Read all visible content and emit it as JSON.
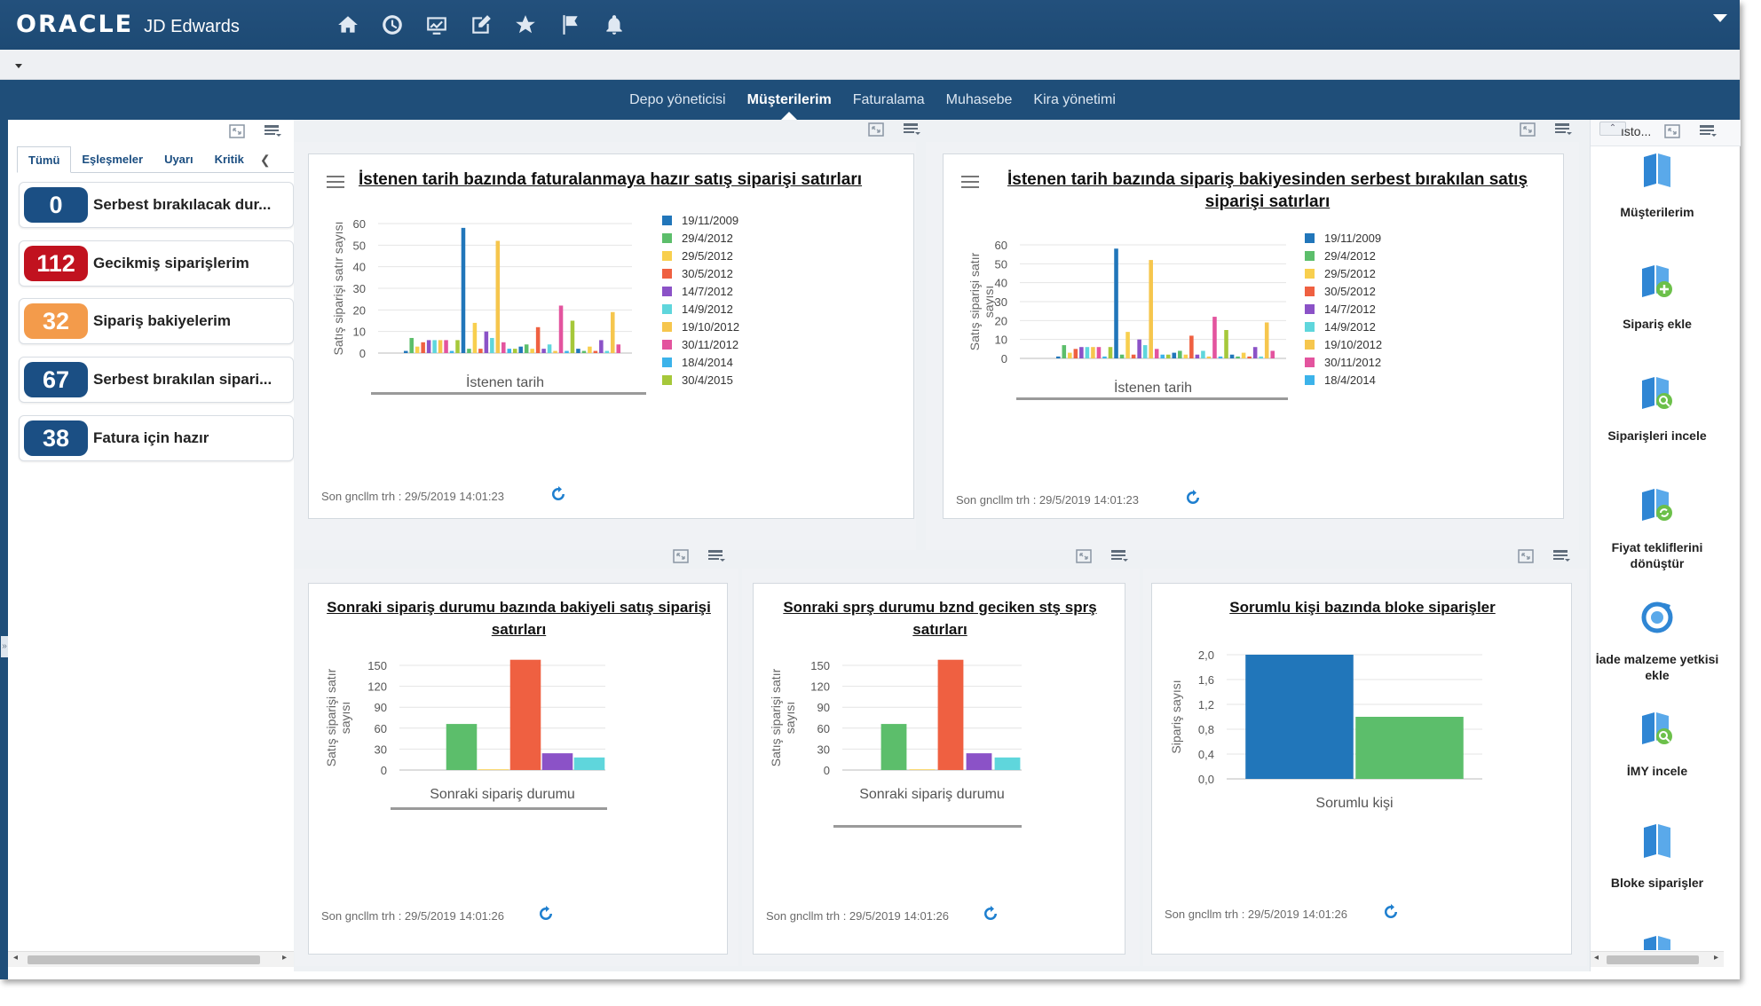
{
  "header": {
    "brand": "ORACLE",
    "product": "JD Edwards",
    "icons": [
      "home-icon",
      "recent-icon",
      "watchlist-chart-icon",
      "edit-form-icon",
      "favorites-star-icon",
      "flag-icon",
      "notification-bell-icon"
    ]
  },
  "nav": {
    "tabs": [
      {
        "label": "Depo yöneticisi",
        "active": false
      },
      {
        "label": "Müşterilerim",
        "active": true
      },
      {
        "label": "Faturalama",
        "active": false
      },
      {
        "label": "Muhasebe",
        "active": false
      },
      {
        "label": "Kira yönetimi",
        "active": false
      }
    ]
  },
  "left_panel": {
    "filters": [
      "Tümü",
      "Eşleşmeler",
      "Uyarı",
      "Kritik"
    ],
    "active_filter": "Tümü",
    "kpis": [
      {
        "value": "0",
        "label": "Serbest bırakılacak dur...",
        "color": "#1b4f84"
      },
      {
        "value": "112",
        "label": "Gecikmiş siparişlerim",
        "color": "#c1121f"
      },
      {
        "value": "32",
        "label": "Sipariş bakiyelerim",
        "color": "#f39b4b"
      },
      {
        "value": "67",
        "label": "Serbest bırakılan sipari...",
        "color": "#1b4f84"
      },
      {
        "value": "38",
        "label": "Fatura için hazır",
        "color": "#1b4f84"
      }
    ]
  },
  "right_panel": {
    "header_text": "ısto...",
    "actions": [
      {
        "label": "Müşterilerim",
        "icon": "book-icon"
      },
      {
        "label": "Sipariş ekle",
        "icon": "order-add-icon"
      },
      {
        "label": "Siparişleri incele",
        "icon": "order-review-icon"
      },
      {
        "label": "Fiyat tekliflerini dönüştür",
        "icon": "quote-convert-icon"
      },
      {
        "label": "İade malzeme yetkisi ekle",
        "icon": "return-authorization-icon"
      },
      {
        "label": "İMY incele",
        "icon": "rma-review-icon"
      },
      {
        "label": "Bloke siparişler",
        "icon": "book-icon"
      }
    ]
  },
  "chart_data": [
    {
      "type": "bar",
      "title": "İstenen tarih bazında faturalanmaya hazır satış siparişi satırları",
      "xlabel": "İstenen tarih",
      "ylabel": "Satış siparişi satır sayısı",
      "ylim": [
        0,
        60
      ],
      "yticks": [
        "0",
        "10",
        "20",
        "30",
        "40",
        "50",
        "60"
      ],
      "legend_position": "right",
      "legend": [
        {
          "name": "19/11/2009",
          "color": "#2176ba"
        },
        {
          "name": "29/4/2012",
          "color": "#5cbe6b"
        },
        {
          "name": "29/5/2012",
          "color": "#f8cf4e"
        },
        {
          "name": "30/5/2012",
          "color": "#ef6041"
        },
        {
          "name": "14/7/2012",
          "color": "#8b52c7"
        },
        {
          "name": "14/9/2012",
          "color": "#5fd6dc"
        },
        {
          "name": "19/10/2012",
          "color": "#f6c64d"
        },
        {
          "name": "30/11/2012",
          "color": "#e3549e"
        },
        {
          "name": "18/4/2014",
          "color": "#3cb3ea"
        },
        {
          "name": "30/4/2015",
          "color": "#a6c83a"
        }
      ],
      "bar_colors": [
        "#2176ba",
        "#5cbe6b",
        "#f8cf4e",
        "#ef6041",
        "#8b52c7",
        "#5fd6dc",
        "#f6c64d",
        "#e3549e",
        "#3cb3ea",
        "#a6c83a"
      ],
      "values": [
        1,
        7,
        3,
        5,
        6,
        6,
        6,
        6,
        1,
        6,
        58,
        2,
        14,
        2,
        10,
        7,
        52,
        5,
        2,
        2,
        3,
        4,
        2,
        12,
        2,
        4,
        1,
        22,
        1,
        15,
        2,
        1,
        3,
        1,
        6,
        1,
        19,
        4
      ],
      "footer": "Son gncllm trh : 29/5/2019 14:01:23"
    },
    {
      "type": "bar",
      "title": "İstenen tarih bazında sipariş bakiyesinden serbest bırakılan satış siparişi satırları",
      "xlabel": "İstenen tarih",
      "ylabel": "Satış siparişi satır sayısı",
      "ylim": [
        0,
        60
      ],
      "yticks": [
        "0",
        "10",
        "20",
        "30",
        "40",
        "50",
        "60"
      ],
      "legend_position": "right",
      "legend": [
        {
          "name": "19/11/2009",
          "color": "#2176ba"
        },
        {
          "name": "29/4/2012",
          "color": "#5cbe6b"
        },
        {
          "name": "29/5/2012",
          "color": "#f8cf4e"
        },
        {
          "name": "30/5/2012",
          "color": "#ef6041"
        },
        {
          "name": "14/7/2012",
          "color": "#8b52c7"
        },
        {
          "name": "14/9/2012",
          "color": "#5fd6dc"
        },
        {
          "name": "19/10/2012",
          "color": "#f6c64d"
        },
        {
          "name": "30/11/2012",
          "color": "#e3549e"
        },
        {
          "name": "18/4/2014",
          "color": "#3cb3ea"
        }
      ],
      "bar_colors": [
        "#2176ba",
        "#5cbe6b",
        "#f8cf4e",
        "#ef6041",
        "#8b52c7",
        "#5fd6dc",
        "#f6c64d",
        "#e3549e",
        "#3cb3ea",
        "#a6c83a"
      ],
      "values": [
        1,
        7,
        3,
        5,
        6,
        6,
        6,
        6,
        1,
        6,
        58,
        2,
        14,
        2,
        10,
        7,
        52,
        5,
        2,
        2,
        3,
        4,
        2,
        12,
        2,
        4,
        1,
        22,
        1,
        15,
        2,
        1,
        3,
        1,
        6,
        1,
        19,
        4
      ],
      "footer": "Son gncllm trh : 29/5/2019 14:01:23"
    },
    {
      "type": "bar",
      "title": "Sonraki sipariş durumu bazında bakiyeli satış siparişi satırları",
      "xlabel": "Sonraki sipariş durumu",
      "ylabel": "Satış siparişi satır sayısı",
      "ylim": [
        0,
        150
      ],
      "yticks": [
        "0",
        "30",
        "60",
        "90",
        "120",
        "150"
      ],
      "bar_colors": [
        "#5cbe6b",
        "#f8cf4e",
        "#ef6041",
        "#8b52c7",
        "#5fd6dc"
      ],
      "values": [
        66,
        1,
        158,
        24,
        18
      ],
      "footer": "Son gncllm trh : 29/5/2019 14:01:26"
    },
    {
      "type": "bar",
      "title": "Sonraki sprş durumu bznd geciken stş sprş satırları",
      "xlabel": "Sonraki sipariş durumu",
      "ylabel": "Satış siparişi satır sayısı",
      "ylim": [
        0,
        150
      ],
      "yticks": [
        "0",
        "30",
        "60",
        "90",
        "120",
        "150"
      ],
      "bar_colors": [
        "#5cbe6b",
        "#f8cf4e",
        "#ef6041",
        "#8b52c7",
        "#5fd6dc"
      ],
      "values": [
        66,
        1,
        158,
        24,
        18
      ],
      "footer": "Son gncllm trh : 29/5/2019 14:01:26"
    },
    {
      "type": "bar",
      "title": "Sorumlu kişi bazında bloke siparişler",
      "xlabel": "Sorumlu kişi",
      "ylabel": "Sipariş sayısı",
      "ylim": [
        0,
        2.0
      ],
      "yticks": [
        "0,0",
        "0,4",
        "0,8",
        "1,2",
        "1,6",
        "2,0"
      ],
      "bar_colors": [
        "#2176ba",
        "#5cbe6b"
      ],
      "values": [
        2.0,
        1.0
      ],
      "footer": "Son gncllm trh : 29/5/2019 14:01:26"
    }
  ]
}
